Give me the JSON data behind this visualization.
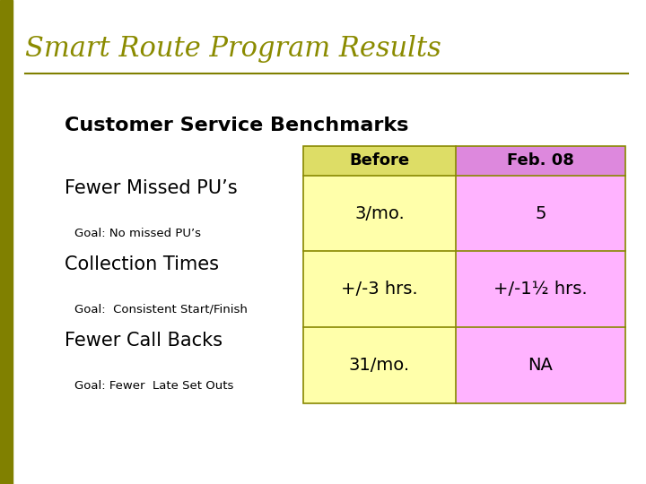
{
  "title": "Smart Route Program Results",
  "title_color": "#8B8B00",
  "subtitle": "Customer Service Benchmarks",
  "background_color": "#FFFFFF",
  "left_bar_color": "#808000",
  "col_header_before": "Before",
  "col_header_feb": "Feb. 08",
  "col_before_bg": "#FFFFAA",
  "col_feb_bg": "#FFB3FF",
  "header_bg_before": "#DDDD66",
  "header_bg_feb": "#DD88DD",
  "border_color": "#888800",
  "rows": [
    {
      "label": "Fewer Missed PU’s",
      "goal": "Goal: No missed PU’s",
      "before": "3/mo.",
      "feb": "5"
    },
    {
      "label": "Collection Times",
      "goal": "Goal:  Consistent Start/Finish",
      "before": "+/-3 hrs.",
      "feb": "+/-1½ hrs."
    },
    {
      "label": "Fewer Call Backs",
      "goal": "Goal: Fewer  Late Set Outs",
      "before": "31/mo.",
      "feb": "NA"
    }
  ]
}
